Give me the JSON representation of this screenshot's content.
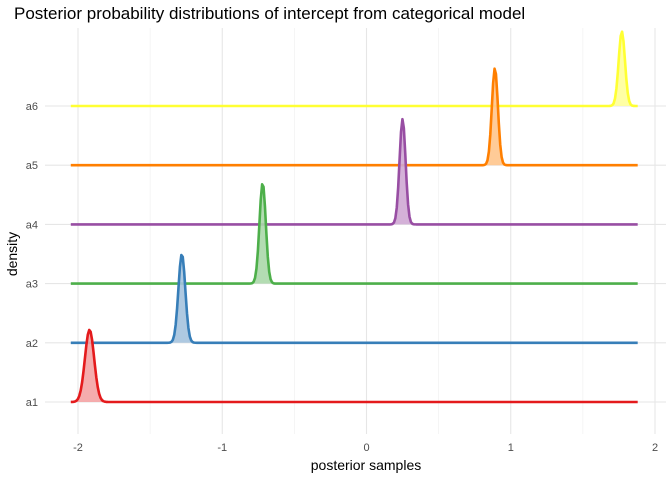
{
  "chart_data": {
    "type": "area",
    "title": "Posterior probability distributions of intercept from categorical model",
    "xlabel": "posterior samples",
    "ylabel": "density",
    "xlim": [
      -2.05,
      1.88
    ],
    "x_ticks": [
      -2,
      -1,
      0,
      1,
      2
    ],
    "x_tick_labels": [
      "-2",
      "-1",
      "0",
      "1",
      "2"
    ],
    "categories": [
      "a1",
      "a2",
      "a3",
      "a4",
      "a5",
      "a6"
    ],
    "grid": true,
    "legend": "none",
    "series": [
      {
        "name": "a1",
        "color": "#e41a1c",
        "fill": "#f4a3a4",
        "peak_x": -1.92,
        "sd": 0.032,
        "peak_height": 1.22
      },
      {
        "name": "a2",
        "color": "#377eb8",
        "fill": "#a5c3de",
        "peak_x": -1.28,
        "sd": 0.024,
        "peak_height": 1.5
      },
      {
        "name": "a3",
        "color": "#4daf4a",
        "fill": "#abd8aa",
        "peak_x": -0.72,
        "sd": 0.022,
        "peak_height": 1.7
      },
      {
        "name": "a4",
        "color": "#984ea3",
        "fill": "#cfa9d4",
        "peak_x": 0.25,
        "sd": 0.021,
        "peak_height": 1.78
      },
      {
        "name": "a5",
        "color": "#ff7f00",
        "fill": "#ffc58c",
        "peak_x": 0.89,
        "sd": 0.021,
        "peak_height": 1.64
      },
      {
        "name": "a6",
        "color": "#ffff33",
        "fill": "#ffff9a",
        "peak_x": 1.77,
        "sd": 0.022,
        "peak_height": 1.26
      }
    ]
  }
}
